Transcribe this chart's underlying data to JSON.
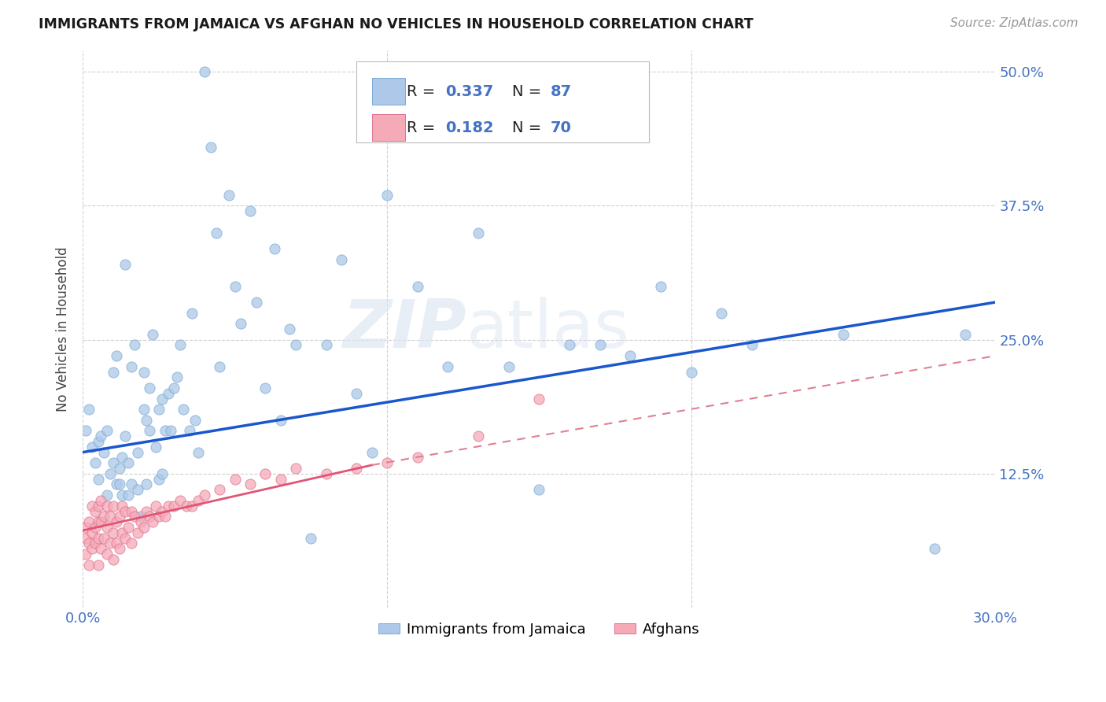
{
  "title": "IMMIGRANTS FROM JAMAICA VS AFGHAN NO VEHICLES IN HOUSEHOLD CORRELATION CHART",
  "source": "Source: ZipAtlas.com",
  "ylabel_label": "No Vehicles in Household",
  "legend_entries": [
    {
      "label": "Immigrants from Jamaica",
      "color": "#adc8e8",
      "edge": "#7aabd4",
      "R": "0.337",
      "N": "87"
    },
    {
      "label": "Afghans",
      "color": "#f5aab8",
      "edge": "#e07090",
      "R": "0.182",
      "N": "70"
    }
  ],
  "watermark": "ZIPatlas",
  "title_color": "#1a1a1a",
  "axis_color": "#4472c4",
  "background_color": "#ffffff",
  "grid_color": "#cccccc",
  "trend_jamaica_color": "#1a56cc",
  "trend_afghan_solid_color": "#e05575",
  "trend_afghan_dash_color": "#e08090",
  "xlim": [
    0.0,
    0.3
  ],
  "ylim": [
    0.0,
    0.52
  ],
  "jamaica_points_x": [
    0.001,
    0.002,
    0.003,
    0.004,
    0.005,
    0.005,
    0.006,
    0.007,
    0.008,
    0.008,
    0.009,
    0.01,
    0.01,
    0.011,
    0.011,
    0.012,
    0.012,
    0.013,
    0.013,
    0.014,
    0.014,
    0.015,
    0.015,
    0.016,
    0.016,
    0.017,
    0.018,
    0.018,
    0.019,
    0.02,
    0.02,
    0.021,
    0.021,
    0.022,
    0.022,
    0.023,
    0.024,
    0.025,
    0.025,
    0.026,
    0.026,
    0.027,
    0.028,
    0.029,
    0.03,
    0.031,
    0.032,
    0.033,
    0.035,
    0.036,
    0.037,
    0.038,
    0.04,
    0.042,
    0.044,
    0.045,
    0.048,
    0.05,
    0.052,
    0.055,
    0.057,
    0.06,
    0.063,
    0.065,
    0.068,
    0.07,
    0.075,
    0.08,
    0.085,
    0.09,
    0.095,
    0.1,
    0.11,
    0.12,
    0.13,
    0.14,
    0.15,
    0.16,
    0.17,
    0.18,
    0.19,
    0.2,
    0.21,
    0.22,
    0.25,
    0.28,
    0.29
  ],
  "jamaica_points_y": [
    0.165,
    0.185,
    0.15,
    0.135,
    0.155,
    0.12,
    0.16,
    0.145,
    0.165,
    0.105,
    0.125,
    0.22,
    0.135,
    0.235,
    0.115,
    0.13,
    0.115,
    0.14,
    0.105,
    0.32,
    0.16,
    0.135,
    0.105,
    0.225,
    0.115,
    0.245,
    0.145,
    0.11,
    0.085,
    0.185,
    0.22,
    0.175,
    0.115,
    0.165,
    0.205,
    0.255,
    0.15,
    0.12,
    0.185,
    0.125,
    0.195,
    0.165,
    0.2,
    0.165,
    0.205,
    0.215,
    0.245,
    0.185,
    0.165,
    0.275,
    0.175,
    0.145,
    0.5,
    0.43,
    0.35,
    0.225,
    0.385,
    0.3,
    0.265,
    0.37,
    0.285,
    0.205,
    0.335,
    0.175,
    0.26,
    0.245,
    0.065,
    0.245,
    0.325,
    0.2,
    0.145,
    0.385,
    0.3,
    0.225,
    0.35,
    0.225,
    0.11,
    0.245,
    0.245,
    0.235,
    0.3,
    0.22,
    0.275,
    0.245,
    0.255,
    0.055,
    0.255
  ],
  "afghan_points_x": [
    0.001,
    0.001,
    0.001,
    0.002,
    0.002,
    0.002,
    0.003,
    0.003,
    0.003,
    0.004,
    0.004,
    0.004,
    0.005,
    0.005,
    0.005,
    0.005,
    0.006,
    0.006,
    0.006,
    0.007,
    0.007,
    0.008,
    0.008,
    0.008,
    0.009,
    0.009,
    0.01,
    0.01,
    0.01,
    0.011,
    0.011,
    0.012,
    0.012,
    0.013,
    0.013,
    0.014,
    0.014,
    0.015,
    0.016,
    0.016,
    0.017,
    0.018,
    0.019,
    0.02,
    0.021,
    0.022,
    0.023,
    0.024,
    0.025,
    0.026,
    0.027,
    0.028,
    0.03,
    0.032,
    0.034,
    0.036,
    0.038,
    0.04,
    0.045,
    0.05,
    0.055,
    0.06,
    0.065,
    0.07,
    0.08,
    0.09,
    0.1,
    0.11,
    0.13,
    0.15
  ],
  "afghan_points_y": [
    0.05,
    0.065,
    0.075,
    0.04,
    0.06,
    0.08,
    0.055,
    0.07,
    0.095,
    0.06,
    0.075,
    0.09,
    0.04,
    0.065,
    0.08,
    0.095,
    0.055,
    0.08,
    0.1,
    0.065,
    0.085,
    0.05,
    0.075,
    0.095,
    0.06,
    0.085,
    0.045,
    0.07,
    0.095,
    0.06,
    0.08,
    0.055,
    0.085,
    0.07,
    0.095,
    0.065,
    0.09,
    0.075,
    0.06,
    0.09,
    0.085,
    0.07,
    0.08,
    0.075,
    0.09,
    0.085,
    0.08,
    0.095,
    0.085,
    0.09,
    0.085,
    0.095,
    0.095,
    0.1,
    0.095,
    0.095,
    0.1,
    0.105,
    0.11,
    0.12,
    0.115,
    0.125,
    0.12,
    0.13,
    0.125,
    0.13,
    0.135,
    0.14,
    0.16,
    0.195
  ],
  "jm_trend_x0": 0.0,
  "jm_trend_y0": 0.145,
  "jm_trend_x1": 0.3,
  "jm_trend_y1": 0.285,
  "af_trend_solid_x0": 0.0,
  "af_trend_solid_y0": 0.072,
  "af_trend_solid_x1": 0.095,
  "af_trend_solid_y1": 0.133,
  "af_trend_dash_x0": 0.095,
  "af_trend_dash_y0": 0.133,
  "af_trend_dash_x1": 0.3,
  "af_trend_dash_y1": 0.235
}
